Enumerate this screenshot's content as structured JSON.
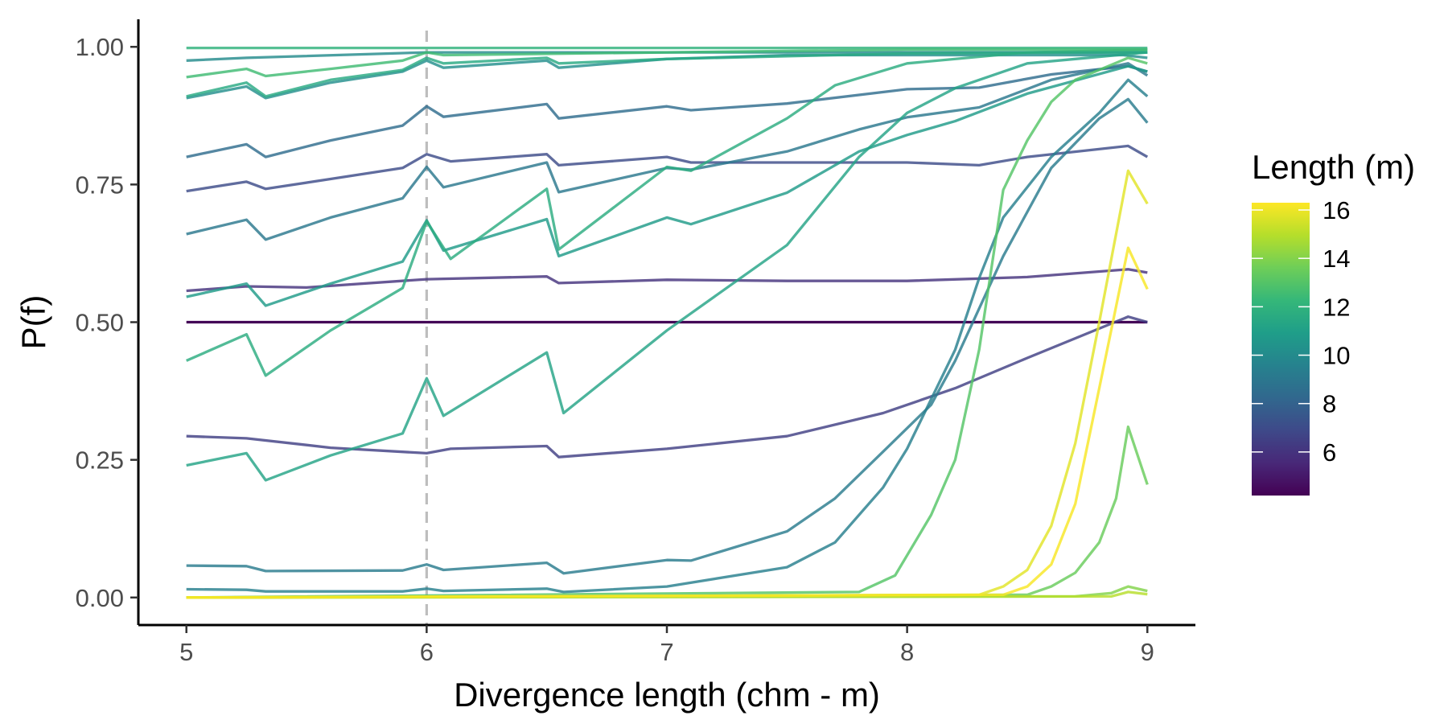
{
  "chart_data": {
    "type": "line",
    "xlabel": "Divergence length (chm - m)",
    "ylabel": "P(f)",
    "xlim": [
      4.8,
      9.2
    ],
    "ylim": [
      -0.05,
      1.05
    ],
    "x_ticks": [
      5,
      6,
      7,
      8,
      9
    ],
    "y_ticks": [
      0.0,
      0.25,
      0.5,
      0.75,
      1.0
    ],
    "x_tick_labels": [
      "5",
      "6",
      "7",
      "8",
      "9"
    ],
    "y_tick_labels": [
      "0.00",
      "0.25",
      "0.50",
      "0.75",
      "1.00"
    ],
    "reference_line": {
      "x": 6,
      "style": "dashed",
      "color": "#bdbdbd"
    },
    "grid": false,
    "legend": {
      "title": "Length (m)",
      "type": "continuous colorbar",
      "placement": "right",
      "range": [
        4.2,
        16.3
      ],
      "ticks": [
        6,
        8,
        10,
        12,
        14,
        16
      ],
      "tick_labels": [
        "6",
        "8",
        "10",
        "12",
        "14",
        "16"
      ],
      "colormap": "viridis"
    },
    "series": [
      {
        "length": 4.3,
        "points": [
          [
            5,
            0.5
          ],
          [
            9,
            0.5
          ]
        ]
      },
      {
        "length": 6.0,
        "points": [
          [
            5,
            0.557
          ],
          [
            5.25,
            0.565
          ],
          [
            5.5,
            0.563
          ],
          [
            6,
            0.578
          ],
          [
            6.5,
            0.583
          ],
          [
            6.55,
            0.571
          ],
          [
            7,
            0.577
          ],
          [
            7.5,
            0.575
          ],
          [
            8,
            0.575
          ],
          [
            8.5,
            0.582
          ],
          [
            8.92,
            0.596
          ],
          [
            9,
            0.59
          ]
        ]
      },
      {
        "length": 6.5,
        "points": [
          [
            5,
            0.293
          ],
          [
            5.25,
            0.289
          ],
          [
            5.5,
            0.277
          ],
          [
            5.6,
            0.272
          ],
          [
            6,
            0.262
          ],
          [
            6.1,
            0.27
          ],
          [
            6.5,
            0.275
          ],
          [
            6.55,
            0.255
          ],
          [
            7,
            0.27
          ],
          [
            7.5,
            0.293
          ],
          [
            7.9,
            0.335
          ],
          [
            8.2,
            0.38
          ],
          [
            8.5,
            0.435
          ],
          [
            8.92,
            0.51
          ],
          [
            9,
            0.5
          ]
        ]
      },
      {
        "length": 7.0,
        "points": [
          [
            5,
            0.738
          ],
          [
            5.25,
            0.755
          ],
          [
            5.33,
            0.742
          ],
          [
            5.6,
            0.76
          ],
          [
            5.9,
            0.78
          ],
          [
            6,
            0.805
          ],
          [
            6.1,
            0.792
          ],
          [
            6.5,
            0.805
          ],
          [
            6.55,
            0.785
          ],
          [
            7,
            0.8
          ],
          [
            7.1,
            0.79
          ],
          [
            7.5,
            0.79
          ],
          [
            8,
            0.79
          ],
          [
            8.3,
            0.785
          ],
          [
            8.5,
            0.8
          ],
          [
            8.92,
            0.82
          ],
          [
            9,
            0.8
          ]
        ]
      },
      {
        "length": 8.5,
        "points": [
          [
            5,
            0.8
          ],
          [
            5.25,
            0.823
          ],
          [
            5.33,
            0.8
          ],
          [
            5.6,
            0.83
          ],
          [
            5.9,
            0.857
          ],
          [
            6,
            0.892
          ],
          [
            6.07,
            0.873
          ],
          [
            6.5,
            0.896
          ],
          [
            6.55,
            0.87
          ],
          [
            7,
            0.892
          ],
          [
            7.1,
            0.885
          ],
          [
            7.5,
            0.897
          ],
          [
            8,
            0.923
          ],
          [
            8.3,
            0.926
          ],
          [
            8.6,
            0.95
          ],
          [
            8.92,
            0.965
          ],
          [
            9,
            0.955
          ]
        ]
      },
      {
        "length": 9.0,
        "points": [
          [
            5,
            0.66
          ],
          [
            5.25,
            0.686
          ],
          [
            5.33,
            0.65
          ],
          [
            5.6,
            0.69
          ],
          [
            5.9,
            0.725
          ],
          [
            6,
            0.782
          ],
          [
            6.07,
            0.745
          ],
          [
            6.5,
            0.79
          ],
          [
            6.55,
            0.736
          ],
          [
            7,
            0.78
          ],
          [
            7.1,
            0.777
          ],
          [
            7.5,
            0.81
          ],
          [
            7.8,
            0.85
          ],
          [
            8,
            0.872
          ],
          [
            8.3,
            0.89
          ],
          [
            8.6,
            0.94
          ],
          [
            8.92,
            0.97
          ],
          [
            9,
            0.948
          ]
        ]
      },
      {
        "length": 9.2,
        "points": [
          [
            5,
            0.058
          ],
          [
            5.25,
            0.057
          ],
          [
            5.33,
            0.048
          ],
          [
            5.9,
            0.049
          ],
          [
            6,
            0.06
          ],
          [
            6.07,
            0.05
          ],
          [
            6.5,
            0.063
          ],
          [
            6.57,
            0.044
          ],
          [
            7,
            0.068
          ],
          [
            7.1,
            0.067
          ],
          [
            7.5,
            0.12
          ],
          [
            7.7,
            0.18
          ],
          [
            7.9,
            0.265
          ],
          [
            8.1,
            0.35
          ],
          [
            8.2,
            0.43
          ],
          [
            8.4,
            0.62
          ],
          [
            8.6,
            0.78
          ],
          [
            8.8,
            0.87
          ],
          [
            8.92,
            0.905
          ],
          [
            9,
            0.862
          ]
        ]
      },
      {
        "length": 9.4,
        "points": [
          [
            5,
            0.015
          ],
          [
            5.25,
            0.014
          ],
          [
            5.33,
            0.011
          ],
          [
            5.9,
            0.011
          ],
          [
            6,
            0.016
          ],
          [
            6.07,
            0.012
          ],
          [
            6.5,
            0.016
          ],
          [
            6.57,
            0.01
          ],
          [
            7,
            0.02
          ],
          [
            7.5,
            0.055
          ],
          [
            7.7,
            0.1
          ],
          [
            7.9,
            0.2
          ],
          [
            8,
            0.27
          ],
          [
            8.2,
            0.45
          ],
          [
            8.3,
            0.58
          ],
          [
            8.4,
            0.69
          ],
          [
            8.6,
            0.8
          ],
          [
            8.8,
            0.88
          ],
          [
            8.92,
            0.94
          ],
          [
            9,
            0.91
          ]
        ]
      },
      {
        "length": 10.0,
        "points": [
          [
            5,
            0.975
          ],
          [
            5.25,
            0.98
          ],
          [
            6,
            0.99
          ],
          [
            9,
            0.99
          ]
        ]
      },
      {
        "length": 10.2,
        "points": [
          [
            5,
            0.907
          ],
          [
            5.25,
            0.928
          ],
          [
            5.33,
            0.907
          ],
          [
            5.6,
            0.935
          ],
          [
            5.9,
            0.955
          ],
          [
            6,
            0.975
          ],
          [
            6.07,
            0.962
          ],
          [
            6.5,
            0.975
          ],
          [
            6.55,
            0.962
          ],
          [
            7,
            0.978
          ],
          [
            7.5,
            0.985
          ],
          [
            8,
            0.985
          ],
          [
            8.5,
            0.985
          ],
          [
            8.9,
            0.985
          ],
          [
            9,
            0.98
          ]
        ]
      },
      {
        "length": 10.8,
        "points": [
          [
            5,
            0.546
          ],
          [
            5.25,
            0.57
          ],
          [
            5.33,
            0.53
          ],
          [
            5.6,
            0.57
          ],
          [
            5.9,
            0.61
          ],
          [
            6,
            0.685
          ],
          [
            6.07,
            0.63
          ],
          [
            6.5,
            0.687
          ],
          [
            6.55,
            0.62
          ],
          [
            7,
            0.69
          ],
          [
            7.1,
            0.678
          ],
          [
            7.5,
            0.735
          ],
          [
            7.8,
            0.81
          ],
          [
            8,
            0.84
          ],
          [
            8.2,
            0.865
          ],
          [
            8.5,
            0.915
          ],
          [
            8.92,
            0.965
          ],
          [
            9,
            0.955
          ]
        ]
      },
      {
        "length": 11.2,
        "points": [
          [
            5,
            0.24
          ],
          [
            5.25,
            0.262
          ],
          [
            5.33,
            0.213
          ],
          [
            5.6,
            0.258
          ],
          [
            5.9,
            0.298
          ],
          [
            6,
            0.398
          ],
          [
            6.07,
            0.33
          ],
          [
            6.5,
            0.445
          ],
          [
            6.57,
            0.335
          ],
          [
            6.9,
            0.45
          ],
          [
            7,
            0.485
          ],
          [
            7.5,
            0.64
          ],
          [
            7.8,
            0.8
          ],
          [
            8,
            0.88
          ],
          [
            8.2,
            0.925
          ],
          [
            8.5,
            0.97
          ],
          [
            9,
            0.99
          ]
        ]
      },
      {
        "length": 11.5,
        "points": [
          [
            5,
            0.91
          ],
          [
            5.25,
            0.935
          ],
          [
            5.33,
            0.91
          ],
          [
            5.6,
            0.94
          ],
          [
            5.9,
            0.958
          ],
          [
            6,
            0.98
          ],
          [
            6.07,
            0.97
          ],
          [
            6.5,
            0.98
          ],
          [
            6.55,
            0.97
          ],
          [
            7,
            0.978
          ],
          [
            8,
            0.988
          ],
          [
            9,
            0.99
          ]
        ]
      },
      {
        "length": 11.7,
        "points": [
          [
            5,
            0.43
          ],
          [
            5.25,
            0.478
          ],
          [
            5.33,
            0.403
          ],
          [
            5.6,
            0.485
          ],
          [
            5.9,
            0.562
          ],
          [
            6,
            0.683
          ],
          [
            6.1,
            0.615
          ],
          [
            6.5,
            0.742
          ],
          [
            6.55,
            0.632
          ],
          [
            7,
            0.782
          ],
          [
            7.1,
            0.775
          ],
          [
            7.5,
            0.87
          ],
          [
            7.7,
            0.93
          ],
          [
            8,
            0.97
          ],
          [
            8.5,
            0.99
          ],
          [
            9,
            0.995
          ]
        ]
      },
      {
        "length": 12.0,
        "points": [
          [
            5,
            0.998
          ],
          [
            9,
            0.998
          ]
        ]
      },
      {
        "length": 12.5,
        "points": [
          [
            5,
            0.945
          ],
          [
            5.25,
            0.96
          ],
          [
            5.33,
            0.947
          ],
          [
            5.6,
            0.96
          ],
          [
            5.9,
            0.975
          ],
          [
            6,
            0.99
          ],
          [
            6.07,
            0.985
          ],
          [
            7,
            0.99
          ],
          [
            8,
            0.995
          ],
          [
            9,
            0.995
          ]
        ]
      },
      {
        "length": 13.0,
        "points": [
          [
            5,
            0.0
          ],
          [
            7.8,
            0.01
          ],
          [
            7.95,
            0.04
          ],
          [
            8.1,
            0.15
          ],
          [
            8.2,
            0.25
          ],
          [
            8.3,
            0.45
          ],
          [
            8.4,
            0.74
          ],
          [
            8.5,
            0.83
          ],
          [
            8.6,
            0.9
          ],
          [
            8.7,
            0.94
          ],
          [
            8.92,
            0.98
          ],
          [
            9,
            0.97
          ]
        ]
      },
      {
        "length": 13.5,
        "points": [
          [
            5,
            0.0
          ],
          [
            8.5,
            0.005
          ],
          [
            8.6,
            0.02
          ],
          [
            8.7,
            0.045
          ],
          [
            8.8,
            0.1
          ],
          [
            8.87,
            0.18
          ],
          [
            8.92,
            0.31
          ],
          [
            9,
            0.205
          ]
        ]
      },
      {
        "length": 14.0,
        "points": [
          [
            5,
            0.0
          ],
          [
            8.7,
            0.002
          ],
          [
            8.85,
            0.008
          ],
          [
            8.92,
            0.02
          ],
          [
            9,
            0.012
          ]
        ]
      },
      {
        "length": 15.0,
        "points": [
          [
            5,
            0.0
          ],
          [
            8.85,
            0.002
          ],
          [
            8.92,
            0.01
          ],
          [
            9,
            0.006
          ]
        ]
      },
      {
        "length": 15.8,
        "points": [
          [
            5,
            0.0
          ],
          [
            8.3,
            0.005
          ],
          [
            8.4,
            0.02
          ],
          [
            8.5,
            0.05
          ],
          [
            8.6,
            0.13
          ],
          [
            8.7,
            0.28
          ],
          [
            8.8,
            0.5
          ],
          [
            8.92,
            0.775
          ],
          [
            9,
            0.715
          ]
        ]
      },
      {
        "length": 16.2,
        "points": [
          [
            5,
            0.0
          ],
          [
            8.4,
            0.005
          ],
          [
            8.5,
            0.02
          ],
          [
            8.6,
            0.06
          ],
          [
            8.7,
            0.17
          ],
          [
            8.8,
            0.38
          ],
          [
            8.92,
            0.635
          ],
          [
            9,
            0.56
          ]
        ]
      }
    ]
  }
}
